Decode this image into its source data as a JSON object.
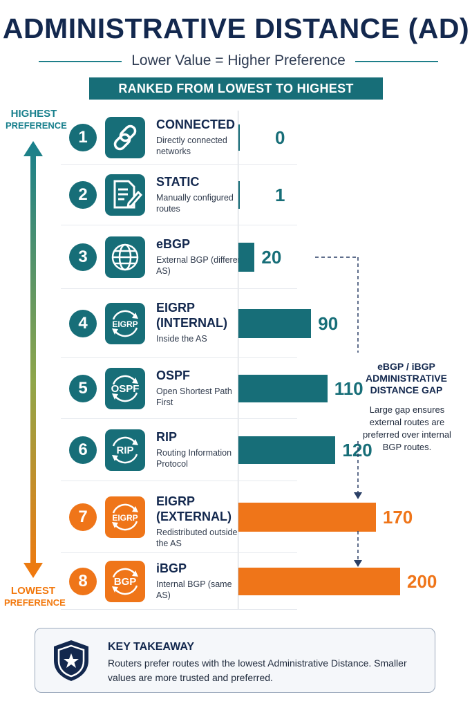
{
  "header": {
    "title": "ADMINISTRATIVE DISTANCE (AD)",
    "subtitle": "Lower Value = Higher Preference",
    "ranked_label": "RANKED FROM LOWEST TO HIGHEST"
  },
  "axis": {
    "top_label": "HIGHEST",
    "top_label2": "PREFERENCE",
    "bottom_label": "LOWEST",
    "bottom_label2": "PREFERENCE"
  },
  "colors": {
    "teal": "#176e78",
    "orange": "#ef7519",
    "navy": "#13284e"
  },
  "chart_data": {
    "type": "bar",
    "orientation": "horizontal",
    "title": "ADMINISTRATIVE DISTANCE (AD)",
    "categories": [
      "CONNECTED",
      "STATIC",
      "eBGP",
      "EIGRP (INTERNAL)",
      "OSPF",
      "RIP",
      "EIGRP (EXTERNAL)",
      "iBGP"
    ],
    "values": [
      0,
      1,
      20,
      90,
      110,
      120,
      170,
      200
    ],
    "xlim": [
      0,
      200
    ],
    "grid": false,
    "legend": "none"
  },
  "rows": [
    {
      "rank": "1",
      "name": "CONNECTED",
      "name2": "",
      "desc": "Directly connected networks",
      "value": "0",
      "icon": "link-icon",
      "color": "teal"
    },
    {
      "rank": "2",
      "name": "STATIC",
      "name2": "",
      "desc": "Manually configured routes",
      "value": "1",
      "icon": "document-edit-icon",
      "color": "teal"
    },
    {
      "rank": "3",
      "name": "eBGP",
      "name2": "",
      "desc": "External BGP (different AS)",
      "value": "20",
      "icon": "globe-icon",
      "color": "teal"
    },
    {
      "rank": "4",
      "name": "EIGRP",
      "name2": "(INTERNAL)",
      "desc": "Inside the AS",
      "value": "90",
      "icon": "eigrp-cycle-icon",
      "icon_text": "EIGRP",
      "color": "teal"
    },
    {
      "rank": "5",
      "name": "OSPF",
      "name2": "",
      "desc": "Open Shortest Path First",
      "value": "110",
      "icon": "ospf-cycle-icon",
      "icon_text": "OSPF",
      "color": "teal"
    },
    {
      "rank": "6",
      "name": "RIP",
      "name2": "",
      "desc": "Routing Information Protocol",
      "value": "120",
      "icon": "rip-cycle-icon",
      "icon_text": "RIP",
      "color": "teal"
    },
    {
      "rank": "7",
      "name": "EIGRP",
      "name2": "(EXTERNAL)",
      "desc": "Redistributed outside the AS",
      "value": "170",
      "icon": "eigrp-cycle-icon",
      "icon_text": "EIGRP",
      "color": "orange"
    },
    {
      "rank": "8",
      "name": "iBGP",
      "name2": "",
      "desc": "Internal BGP (same AS)",
      "value": "200",
      "icon": "bgp-cycle-icon",
      "icon_text": "BGP",
      "color": "orange"
    }
  ],
  "gap_note": {
    "title": "eBGP / iBGP ADMINISTRATIVE DISTANCE GAP",
    "text": "Large gap ensures external routes are preferred over internal BGP routes."
  },
  "takeaway": {
    "title": "KEY TAKEAWAY",
    "text": "Routers prefer routes with the lowest Administrative Distance. Smaller values are more trusted and preferred.",
    "icon": "shield-star-icon"
  }
}
